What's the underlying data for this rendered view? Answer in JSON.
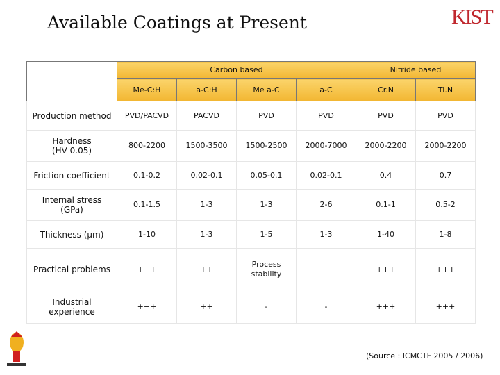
{
  "header": {
    "title": "Available Coatings at Present",
    "logo": "KIST"
  },
  "table": {
    "groups": [
      "Carbon based",
      "Nitride based"
    ],
    "columns": [
      "Me-C:H",
      "a-C:H",
      "Me a-C",
      "a-C",
      "Cr.N",
      "Ti.N"
    ],
    "rows": [
      [
        "Production method",
        "PVD/PACVD",
        "PACVD",
        "PVD",
        "PVD",
        "PVD",
        "PVD"
      ],
      [
        "Hardness\n(HV 0.05)",
        "800-2200",
        "1500-3500",
        "1500-2500",
        "2000-7000",
        "2000-2200",
        "2000-2200"
      ],
      [
        "Friction coefficient",
        "0.1-0.2",
        "0.02-0.1",
        "0.05-0.1",
        "0.02-0.1",
        "0.4",
        "0.7"
      ],
      [
        "Internal stress\n(GPa)",
        "0.1-1.5",
        "1-3",
        "1-3",
        "2-6",
        "0.1-1",
        "0.5-2"
      ],
      [
        "Thickness (μm)",
        "1-10",
        "1-3",
        "1-5",
        "1-3",
        "1-40",
        "1-8"
      ],
      [
        "Practical problems",
        "+++",
        "++",
        "Process\nstability",
        "+",
        "+++",
        "+++"
      ],
      [
        "Industrial\nexperience",
        "+++",
        "++",
        "-",
        "-",
        "+++",
        "+++"
      ]
    ]
  },
  "footer": {
    "source": "(Source : ICMCTF 2005 / 2006)"
  }
}
